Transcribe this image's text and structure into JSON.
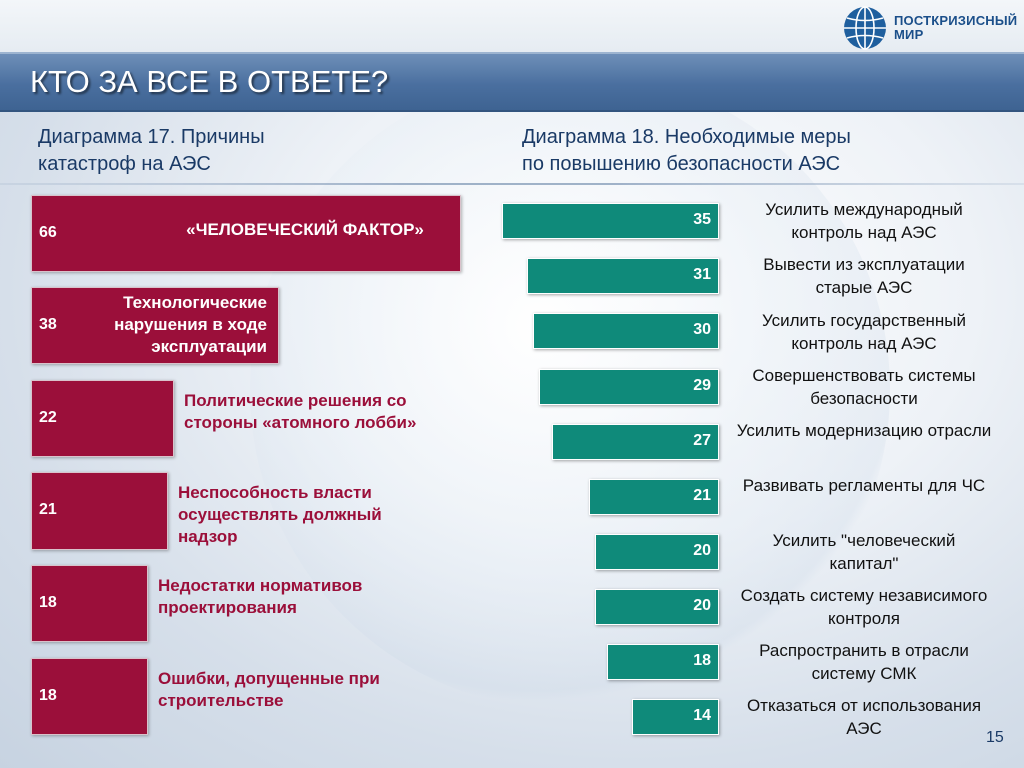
{
  "brand": {
    "line1": "ПОСТКРИЗИСНЫЙ",
    "line2": "МИР"
  },
  "slide_title": "КТО ЗА ВСЕ В ОТВЕТЕ?",
  "left_subtitle": "Диаграмма 17. Причины\nкатастроф на АЭС",
  "right_subtitle": "Диаграмма 18. Необходимые меры\nпо повышению безопасности АЭС",
  "page_number": "15",
  "colors": {
    "causes_bar": "#9b0f3a",
    "measures_bar": "#0f8a7a",
    "title_bar": "#4a6f9f"
  },
  "chart_data": [
    {
      "type": "bar",
      "orientation": "horizontal",
      "title": "Диаграмма 17. Причины катастроф на АЭС",
      "categories": [
        "«ЧЕЛОВЕЧЕСКИЙ ФАКТОР»",
        "Технологические нарушения в ходе эксплуатации",
        "Политические решения со стороны «атомного лобби»",
        "Неспособность власти осуществлять должный надзор",
        "Недостатки нормативов проектирования",
        "Ошибки, допущенные при строительстве"
      ],
      "labels_display": [
        "«ЧЕЛОВЕЧЕСКИЙ ФАКТОР»",
        "Технологические\nнарушения в ходе\nэксплуатации",
        "Политические решения со\nстороны «атомного лобби»",
        "Неспособность власти\nосуществлять должный\nнадзор",
        "Недостатки нормативов\nпроектирования",
        "Ошибки, допущенные при\nстроительстве"
      ],
      "values": [
        66,
        38,
        22,
        21,
        18,
        18
      ],
      "value_labels": [
        "66",
        "38",
        "22",
        "21",
        "18",
        "18"
      ],
      "xlim": [
        0,
        66
      ]
    },
    {
      "type": "bar",
      "orientation": "horizontal",
      "title": "Диаграмма 18. Необходимые меры по повышению безопасности АЭС",
      "categories": [
        "Усилить международный контроль над АЭС",
        "Вывести из эксплуатации старые АЭС",
        "Усилить государственный контроль над АЭС",
        "Совершенствовать системы безопасности",
        "Усилить модернизацию отрасли",
        "Развивать регламенты для ЧС",
        "Усилить \"человеческий капитал\"",
        "Создать систему независимого контроля",
        "Распространить в отрасли систему СМК",
        "Отказаться от использования АЭС"
      ],
      "values": [
        35,
        31,
        30,
        29,
        27,
        21,
        20,
        20,
        18,
        14
      ],
      "value_labels": [
        "35",
        "31",
        "30",
        "29",
        "27",
        "21",
        "20",
        "20",
        "18",
        "14"
      ],
      "xlim": [
        0,
        35
      ]
    }
  ]
}
